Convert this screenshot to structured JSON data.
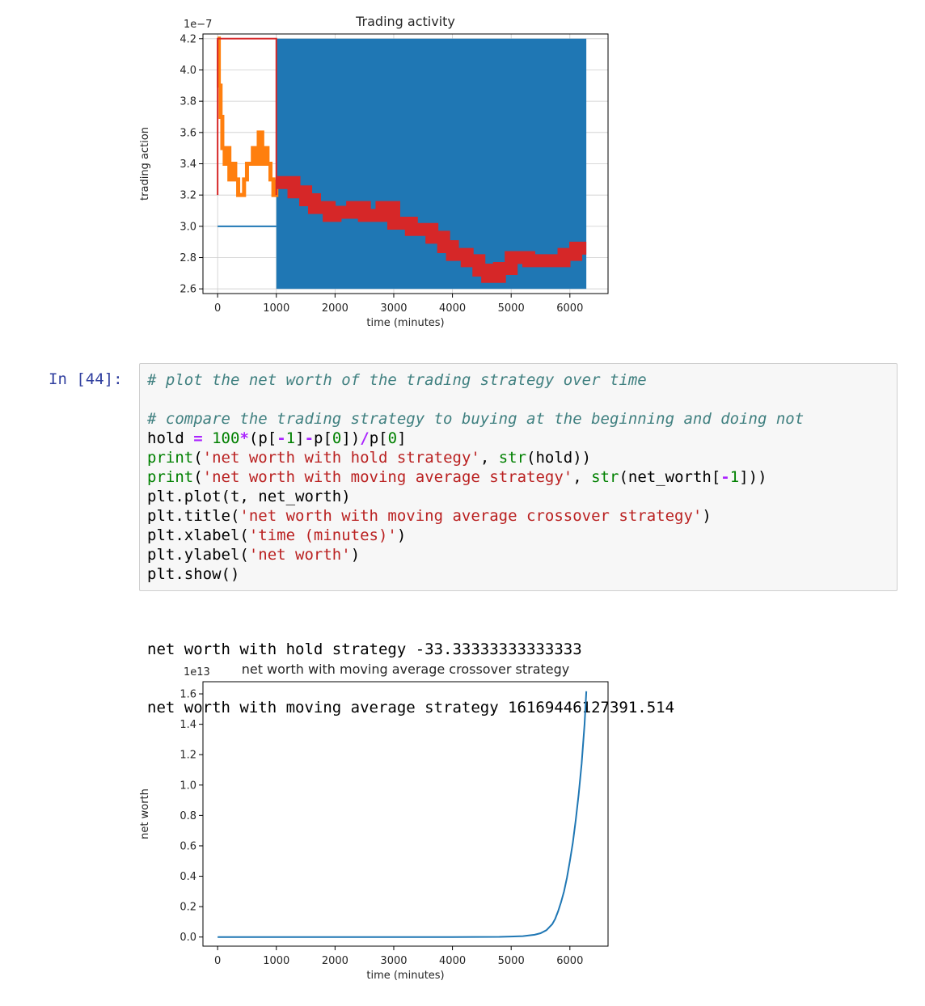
{
  "cell": {
    "prompt": "In [44]:",
    "code_lines": [
      [
        {
          "t": "# plot the net worth of the trading strategy over time",
          "c": "cm"
        }
      ],
      [],
      [
        {
          "t": "# compare the trading strategy to buying at the beginning and doing not",
          "c": "cm"
        }
      ],
      [
        {
          "t": "hold ",
          "c": ""
        },
        {
          "t": "=",
          "c": "op"
        },
        {
          "t": " ",
          "c": ""
        },
        {
          "t": "100",
          "c": "nu"
        },
        {
          "t": "*",
          "c": "op"
        },
        {
          "t": "(p[",
          "c": ""
        },
        {
          "t": "-",
          "c": "op"
        },
        {
          "t": "1",
          "c": "nu"
        },
        {
          "t": "]",
          "c": ""
        },
        {
          "t": "-",
          "c": "op"
        },
        {
          "t": "p[",
          "c": ""
        },
        {
          "t": "0",
          "c": "nu"
        },
        {
          "t": "])",
          "c": ""
        },
        {
          "t": "/",
          "c": "op"
        },
        {
          "t": "p[",
          "c": ""
        },
        {
          "t": "0",
          "c": "nu"
        },
        {
          "t": "]",
          "c": ""
        }
      ],
      [
        {
          "t": "print",
          "c": "bi"
        },
        {
          "t": "(",
          "c": ""
        },
        {
          "t": "'net worth with hold strategy'",
          "c": "st"
        },
        {
          "t": ", ",
          "c": ""
        },
        {
          "t": "str",
          "c": "bi"
        },
        {
          "t": "(hold))",
          "c": ""
        }
      ],
      [
        {
          "t": "print",
          "c": "bi"
        },
        {
          "t": "(",
          "c": ""
        },
        {
          "t": "'net worth with moving average strategy'",
          "c": "st"
        },
        {
          "t": ", ",
          "c": ""
        },
        {
          "t": "str",
          "c": "bi"
        },
        {
          "t": "(net_worth[",
          "c": ""
        },
        {
          "t": "-",
          "c": "op"
        },
        {
          "t": "1",
          "c": "nu"
        },
        {
          "t": "]))",
          "c": ""
        }
      ],
      [
        {
          "t": "plt.plot(t, net_worth)",
          "c": ""
        }
      ],
      [
        {
          "t": "plt.title(",
          "c": ""
        },
        {
          "t": "'net worth with moving average crossover strategy'",
          "c": "st"
        },
        {
          "t": ")",
          "c": ""
        }
      ],
      [
        {
          "t": "plt.xlabel(",
          "c": ""
        },
        {
          "t": "'time (minutes)'",
          "c": "st"
        },
        {
          "t": ")",
          "c": ""
        }
      ],
      [
        {
          "t": "plt.ylabel(",
          "c": ""
        },
        {
          "t": "'net worth'",
          "c": "st"
        },
        {
          "t": ")",
          "c": ""
        }
      ],
      [
        {
          "t": "plt.show()",
          "c": ""
        }
      ]
    ],
    "output_lines": [
      "net worth with hold strategy -33.33333333333333",
      "net worth with moving average strategy 16169446127391.514"
    ]
  },
  "chart_data": [
    {
      "type": "line",
      "title": "Trading activity",
      "xlabel": "time (minutes)",
      "ylabel": "trading action",
      "offset_label": "1e−7",
      "xlim": [
        -250,
        6650
      ],
      "ylim": [
        2.57,
        4.23
      ],
      "xticks": [
        0,
        1000,
        2000,
        3000,
        4000,
        5000,
        6000
      ],
      "yticks": [
        2.6,
        2.8,
        3.0,
        3.2,
        3.4,
        3.6,
        3.8,
        4.0,
        4.2
      ],
      "ytick_labels": [
        "2.6",
        "2.8",
        "3.0",
        "3.2",
        "3.4",
        "3.6",
        "3.8",
        "4.0",
        "4.2"
      ],
      "grid": true,
      "series": [
        {
          "color": "#1f77b4",
          "style": "line",
          "x": [
            0,
            1000
          ],
          "y": [
            3.0,
            3.0
          ]
        },
        {
          "color": "#1f77b4",
          "style": "band",
          "x": [
            1000,
            6280
          ],
          "y": [
            2.6,
            4.2
          ]
        },
        {
          "color": "#ff7f0e",
          "style": "step",
          "x": [
            0,
            20,
            50,
            80,
            120,
            160,
            200,
            260,
            300,
            350,
            400,
            450,
            500,
            550,
            600,
            650,
            700,
            760,
            800,
            850,
            900,
            950,
            1000
          ],
          "y": [
            4.2,
            3.9,
            3.7,
            3.5,
            3.4,
            3.5,
            3.3,
            3.4,
            3.3,
            3.2,
            3.2,
            3.3,
            3.4,
            3.4,
            3.5,
            3.4,
            3.6,
            3.4,
            3.5,
            3.4,
            3.3,
            3.2,
            3.3
          ]
        },
        {
          "color": "#d62728",
          "style": "line",
          "x": [
            0,
            0,
            1000,
            1000
          ],
          "y": [
            3.2,
            4.2,
            4.2,
            3.2
          ]
        },
        {
          "color": "#d62728",
          "style": "thickstep",
          "x": [
            1000,
            1300,
            1500,
            1650,
            1900,
            2000,
            2300,
            2500,
            2800,
            3000,
            3300,
            3650,
            3850,
            4000,
            4250,
            4450,
            4600,
            4800,
            5000,
            5300,
            5900,
            6100,
            6280
          ],
          "y": [
            3.28,
            3.22,
            3.17,
            3.12,
            3.07,
            3.09,
            3.12,
            3.07,
            3.12,
            3.02,
            2.98,
            2.93,
            2.87,
            2.82,
            2.78,
            2.72,
            2.68,
            2.73,
            2.8,
            2.78,
            2.82,
            2.86,
            2.86
          ]
        }
      ]
    },
    {
      "type": "line",
      "title": "net worth with moving average crossover strategy",
      "xlabel": "time (minutes)",
      "ylabel": "net worth",
      "offset_label": "1e13",
      "xlim": [
        -250,
        6650
      ],
      "ylim": [
        -0.06,
        1.68
      ],
      "xticks": [
        0,
        1000,
        2000,
        3000,
        4000,
        5000,
        6000
      ],
      "yticks": [
        0.0,
        0.2,
        0.4,
        0.6,
        0.8,
        1.0,
        1.2,
        1.4,
        1.6
      ],
      "ytick_labels": [
        "0.0",
        "0.2",
        "0.4",
        "0.6",
        "0.8",
        "1.0",
        "1.2",
        "1.4",
        "1.6"
      ],
      "grid": false,
      "series": [
        {
          "color": "#1f77b4",
          "style": "line",
          "x": [
            0,
            1000,
            2000,
            3000,
            4000,
            4800,
            5200,
            5400,
            5500,
            5600,
            5700,
            5750,
            5800,
            5850,
            5900,
            5950,
            6000,
            6050,
            6100,
            6150,
            6200,
            6250,
            6280
          ],
          "y": [
            0.0,
            0.0,
            0.0,
            0.0,
            0.0,
            0.001,
            0.006,
            0.015,
            0.025,
            0.045,
            0.085,
            0.12,
            0.17,
            0.23,
            0.3,
            0.39,
            0.5,
            0.62,
            0.77,
            0.94,
            1.14,
            1.4,
            1.617
          ]
        }
      ]
    }
  ]
}
